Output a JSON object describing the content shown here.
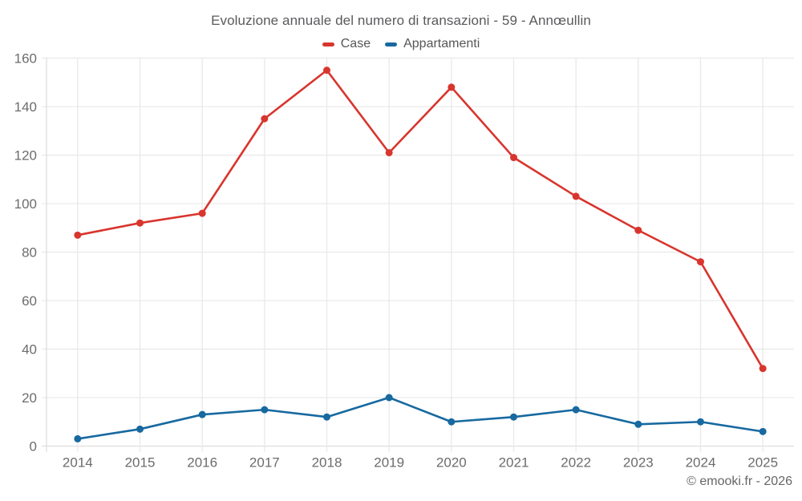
{
  "header": {
    "title": "Evoluzione annuale del numero di transazioni - 59 - Annœullin"
  },
  "footer": {
    "credit": "© emooki.fr - 2026"
  },
  "colors": {
    "case_red": "#d8352e",
    "appartamenti_blue": "#1769a0",
    "gridline": "#e9e9e9",
    "axis_line": "#dedede",
    "tick_text": "#6c6c6c",
    "title_text": "#595a5c"
  },
  "chart_data": {
    "type": "line",
    "title": "Evoluzione annuale del numero di transazioni - 59 - Annœullin",
    "categories": [
      "2014",
      "2015",
      "2016",
      "2017",
      "2018",
      "2019",
      "2020",
      "2021",
      "2022",
      "2023",
      "2024",
      "2025"
    ],
    "series": [
      {
        "name": "Case",
        "color": "#d8352e",
        "values": [
          87,
          92,
          96,
          135,
          155,
          121,
          148,
          119,
          103,
          89,
          76,
          32
        ]
      },
      {
        "name": "Appartamenti",
        "color": "#1769a0",
        "values": [
          3,
          7,
          13,
          15,
          12,
          20,
          10,
          12,
          15,
          9,
          10,
          6
        ]
      }
    ],
    "xlabel": "",
    "ylabel": "",
    "ylim": [
      0,
      160
    ],
    "yticks": [
      0,
      20,
      40,
      60,
      80,
      100,
      120,
      140,
      160
    ],
    "grid": true,
    "legend_position": "top",
    "marker": "circle"
  }
}
